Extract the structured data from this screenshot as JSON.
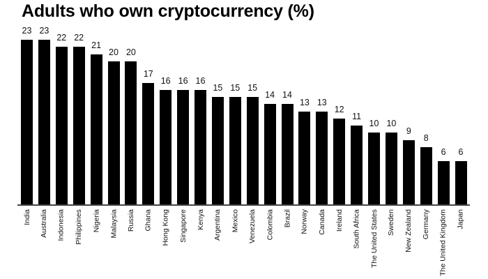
{
  "chart_data": {
    "type": "bar",
    "title": "Adults who own cryptocurrency (%)",
    "xlabel": "",
    "ylabel": "",
    "ylim": [
      0,
      23
    ],
    "grid": false,
    "legend": null,
    "categories": [
      "India",
      "Australia",
      "Indonesia",
      "Philippines",
      "Nigeria",
      "Malaysia",
      "Russia",
      "Ghana",
      "Hong Kong",
      "Singapore",
      "Kenya",
      "Argentina",
      "Mexico",
      "Venezuela",
      "Colombia",
      "Brazil",
      "Norway",
      "Canada",
      "Ireland",
      "South Africa",
      "The United States",
      "Sweden",
      "New Zealand",
      "Germany",
      "The United Kingdom",
      "Japan"
    ],
    "values": [
      23,
      23,
      22,
      22,
      21,
      20,
      20,
      17,
      16,
      16,
      16,
      15,
      15,
      15,
      14,
      14,
      13,
      13,
      12,
      11,
      10,
      10,
      9,
      8,
      6,
      6
    ],
    "colors": {
      "bar": "#000000",
      "axis": "#444444"
    }
  }
}
